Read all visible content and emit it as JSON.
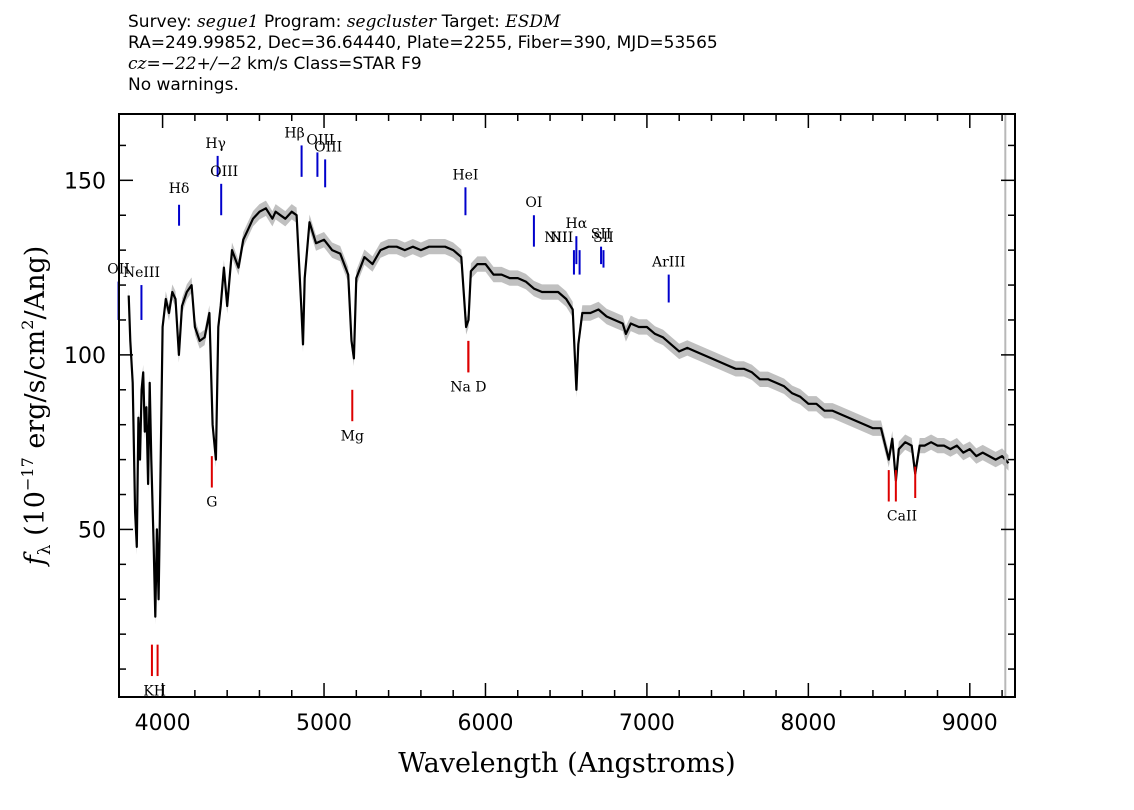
{
  "header": {
    "survey_label": "Survey:",
    "survey": "segue1",
    "program_label": "Program:",
    "program": "segcluster",
    "target_label": "Target:",
    "target": "ESDM",
    "line2": "RA=249.99852, Dec=36.64440, Plate=2255, Fiber=390, MJD=53565",
    "cz": "cz=−22+/−2",
    "cz_rest": " km/s Class=STAR F9",
    "line4": "No warnings."
  },
  "chart_data": {
    "type": "line",
    "xlabel": "Wavelength (Angstroms)",
    "ylabel": "f_λ (10^-17 erg/s/cm²/Ang)",
    "xlim": [
      3730,
      9280
    ],
    "ylim": [
      2,
      169
    ],
    "x_ticks": [
      4000,
      5000,
      6000,
      7000,
      8000,
      9000
    ],
    "y_ticks": [
      50,
      100,
      150
    ],
    "grid": false,
    "vertical_marker_x": 9220,
    "series": [
      {
        "color": "#000000",
        "error_band_color": "#b0b0b0",
        "points": [
          [
            3790,
            117
          ],
          [
            3800,
            104
          ],
          [
            3815,
            92
          ],
          [
            3830,
            55
          ],
          [
            3840,
            45
          ],
          [
            3850,
            82
          ],
          [
            3860,
            70
          ],
          [
            3870,
            90
          ],
          [
            3880,
            95
          ],
          [
            3890,
            78
          ],
          [
            3900,
            85
          ],
          [
            3910,
            63
          ],
          [
            3920,
            92
          ],
          [
            3930,
            70
          ],
          [
            3945,
            45
          ],
          [
            3955,
            25
          ],
          [
            3965,
            50
          ],
          [
            3975,
            30
          ],
          [
            3985,
            60
          ],
          [
            4000,
            108
          ],
          [
            4020,
            116
          ],
          [
            4040,
            112
          ],
          [
            4060,
            118
          ],
          [
            4080,
            116
          ],
          [
            4101,
            100
          ],
          [
            4120,
            114
          ],
          [
            4150,
            118
          ],
          [
            4180,
            120
          ],
          [
            4200,
            108
          ],
          [
            4230,
            104
          ],
          [
            4260,
            105
          ],
          [
            4290,
            112
          ],
          [
            4310,
            80
          ],
          [
            4330,
            70
          ],
          [
            4345,
            108
          ],
          [
            4360,
            114
          ],
          [
            4380,
            125
          ],
          [
            4400,
            114
          ],
          [
            4430,
            130
          ],
          [
            4470,
            125
          ],
          [
            4500,
            133
          ],
          [
            4530,
            136
          ],
          [
            4560,
            139
          ],
          [
            4600,
            141
          ],
          [
            4640,
            142
          ],
          [
            4680,
            139
          ],
          [
            4700,
            141
          ],
          [
            4730,
            140
          ],
          [
            4760,
            139
          ],
          [
            4800,
            141
          ],
          [
            4830,
            140
          ],
          [
            4860,
            113
          ],
          [
            4870,
            103
          ],
          [
            4880,
            122
          ],
          [
            4910,
            138
          ],
          [
            4950,
            132
          ],
          [
            5000,
            133
          ],
          [
            5050,
            130
          ],
          [
            5100,
            129
          ],
          [
            5150,
            123
          ],
          [
            5170,
            104
          ],
          [
            5185,
            99
          ],
          [
            5200,
            122
          ],
          [
            5250,
            128
          ],
          [
            5300,
            126
          ],
          [
            5350,
            130
          ],
          [
            5400,
            131
          ],
          [
            5450,
            131
          ],
          [
            5500,
            130
          ],
          [
            5550,
            131
          ],
          [
            5600,
            130
          ],
          [
            5650,
            131
          ],
          [
            5700,
            131
          ],
          [
            5750,
            131
          ],
          [
            5800,
            130
          ],
          [
            5850,
            128
          ],
          [
            5880,
            108
          ],
          [
            5895,
            110
          ],
          [
            5910,
            124
          ],
          [
            5950,
            126
          ],
          [
            6000,
            126
          ],
          [
            6050,
            123
          ],
          [
            6100,
            123
          ],
          [
            6150,
            122
          ],
          [
            6200,
            122
          ],
          [
            6250,
            121
          ],
          [
            6300,
            119
          ],
          [
            6350,
            118
          ],
          [
            6400,
            118
          ],
          [
            6450,
            118
          ],
          [
            6500,
            116
          ],
          [
            6540,
            113
          ],
          [
            6563,
            90
          ],
          [
            6575,
            103
          ],
          [
            6600,
            112
          ],
          [
            6650,
            112
          ],
          [
            6700,
            113
          ],
          [
            6750,
            111
          ],
          [
            6800,
            110
          ],
          [
            6850,
            109
          ],
          [
            6870,
            106
          ],
          [
            6900,
            109
          ],
          [
            6950,
            108
          ],
          [
            7000,
            108
          ],
          [
            7050,
            106
          ],
          [
            7100,
            105
          ],
          [
            7150,
            103
          ],
          [
            7200,
            101
          ],
          [
            7250,
            102
          ],
          [
            7300,
            101
          ],
          [
            7350,
            100
          ],
          [
            7400,
            99
          ],
          [
            7450,
            98
          ],
          [
            7500,
            97
          ],
          [
            7550,
            96
          ],
          [
            7600,
            96
          ],
          [
            7650,
            95
          ],
          [
            7700,
            93
          ],
          [
            7750,
            93
          ],
          [
            7800,
            92
          ],
          [
            7850,
            91
          ],
          [
            7900,
            89
          ],
          [
            7950,
            88
          ],
          [
            8000,
            86
          ],
          [
            8050,
            86
          ],
          [
            8100,
            84
          ],
          [
            8150,
            84
          ],
          [
            8200,
            83
          ],
          [
            8250,
            82
          ],
          [
            8300,
            81
          ],
          [
            8350,
            80
          ],
          [
            8400,
            79
          ],
          [
            8450,
            79
          ],
          [
            8498,
            70
          ],
          [
            8520,
            76
          ],
          [
            8542,
            64
          ],
          [
            8560,
            73
          ],
          [
            8600,
            75
          ],
          [
            8640,
            74
          ],
          [
            8662,
            66
          ],
          [
            8690,
            74
          ],
          [
            8720,
            74
          ],
          [
            8760,
            75
          ],
          [
            8800,
            74
          ],
          [
            8840,
            74
          ],
          [
            8880,
            73
          ],
          [
            8920,
            74
          ],
          [
            8960,
            72
          ],
          [
            9000,
            73
          ],
          [
            9040,
            71
          ],
          [
            9080,
            72
          ],
          [
            9120,
            71
          ],
          [
            9160,
            70
          ],
          [
            9200,
            71
          ],
          [
            9240,
            69
          ]
        ]
      }
    ],
    "emission_lines": [
      {
        "label": "OII",
        "x": 3727,
        "y_lo": 110,
        "y_hi": 121
      },
      {
        "label": "NeIII",
        "x": 3869,
        "y_lo": 110,
        "y_hi": 120
      },
      {
        "label": "Hδ",
        "x": 4102,
        "y_lo": 137,
        "y_hi": 143
      },
      {
        "label": "Hγ",
        "x": 4341,
        "y_lo": 151,
        "y_hi": 157
      },
      {
        "label": "OIII",
        "x": 4363,
        "y_lo": 140,
        "y_hi": 149
      },
      {
        "label": "Hβ",
        "x": 4861,
        "y_lo": 151,
        "y_hi": 160
      },
      {
        "label": "OIII",
        "x": 4959,
        "y_lo": 151,
        "y_hi": 158
      },
      {
        "label": "OIII",
        "x": 5007,
        "y_lo": 148,
        "y_hi": 156
      },
      {
        "label": "HeI",
        "x": 5876,
        "y_lo": 140,
        "y_hi": 148
      },
      {
        "label": "OI",
        "x": 6300,
        "y_lo": 131,
        "y_hi": 140
      },
      {
        "label": "NII",
        "x": 6548,
        "y_lo": 123,
        "y_hi": 130
      },
      {
        "label": "Hα",
        "x": 6563,
        "y_lo": 126,
        "y_hi": 134
      },
      {
        "label": "NII",
        "x": 6583,
        "y_lo": 123,
        "y_hi": 130
      },
      {
        "label": "SII",
        "x": 6716,
        "y_lo": 126,
        "y_hi": 131
      },
      {
        "label": "SII",
        "x": 6731,
        "y_lo": 125,
        "y_hi": 130
      },
      {
        "label": "ArIII",
        "x": 7135,
        "y_lo": 115,
        "y_hi": 123
      }
    ],
    "absorption_lines": [
      {
        "label": "K",
        "x": 3934,
        "y_lo": 8,
        "y_hi": 17
      },
      {
        "label": "H",
        "x": 3969,
        "y_lo": 8,
        "y_hi": 17
      },
      {
        "label": "G",
        "x": 4305,
        "y_lo": 62,
        "y_hi": 71
      },
      {
        "label": "Mg",
        "x": 5175,
        "y_lo": 81,
        "y_hi": 90
      },
      {
        "label": "Na",
        "x": 5894,
        "y_lo": 95,
        "y_hi": 104
      },
      {
        "label": "D",
        "x": 5894,
        "y_lo": 95,
        "y_hi": 104
      },
      {
        "label": "CaII",
        "x": 8498,
        "y_lo": 58,
        "y_hi": 67
      },
      {
        "label": "CaII",
        "x": 8542,
        "y_lo": 58,
        "y_hi": 67
      },
      {
        "label": "CaII",
        "x": 8662,
        "y_lo": 59,
        "y_hi": 68
      }
    ],
    "emission_color": "#0000cc",
    "absorption_color": "#dd0000"
  }
}
